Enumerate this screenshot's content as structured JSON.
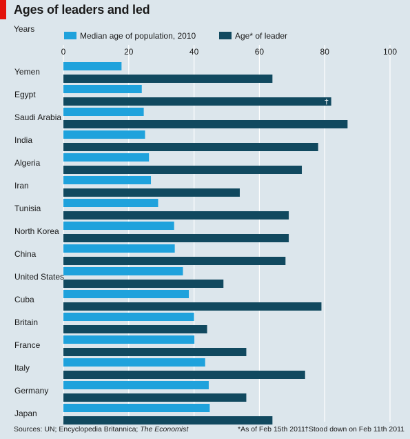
{
  "header": {
    "title": "Ages of leaders and led",
    "units": "Years"
  },
  "footer": {
    "source": "Sources: UN; Encyclopedia Britannica; The Economist",
    "footnote_asof": "*As of Feb 15th 2011",
    "footnote_dagger": "†Stood down on Feb 11th 2011"
  },
  "colors": {
    "background": "#dce6ec",
    "median": "#1fa2dc",
    "leader": "#11495f",
    "accent": "#e3120b"
  },
  "chart_data": {
    "type": "bar",
    "orientation": "horizontal",
    "title": "Ages of leaders and led",
    "xlabel": "Years",
    "xlim": [
      0,
      100
    ],
    "xticks": [
      0,
      20,
      40,
      60,
      80,
      100
    ],
    "grid": true,
    "legend_position": "top",
    "categories": [
      "Yemen",
      "Egypt",
      "Saudi Arabia",
      "India",
      "Algeria",
      "Iran",
      "Tunisia",
      "North Korea",
      "China",
      "United States",
      "Cuba",
      "Britain",
      "France",
      "Italy",
      "Germany",
      "Japan"
    ],
    "series": [
      {
        "name": "Median age of population, 2010",
        "color": "#1fa2dc",
        "values": [
          17.8,
          24.0,
          24.6,
          25.0,
          26.2,
          26.8,
          29.0,
          33.9,
          34.1,
          36.6,
          38.4,
          40.0,
          40.1,
          43.4,
          44.5,
          44.8
        ]
      },
      {
        "name": "Age* of leader",
        "color": "#11495f",
        "values": [
          64,
          82,
          87,
          78,
          73,
          54,
          69,
          69,
          68,
          49,
          79,
          44,
          56,
          74,
          56,
          64
        ]
      }
    ],
    "annotations": [
      {
        "category": "Egypt",
        "series": "Age* of leader",
        "text": "†"
      }
    ]
  }
}
